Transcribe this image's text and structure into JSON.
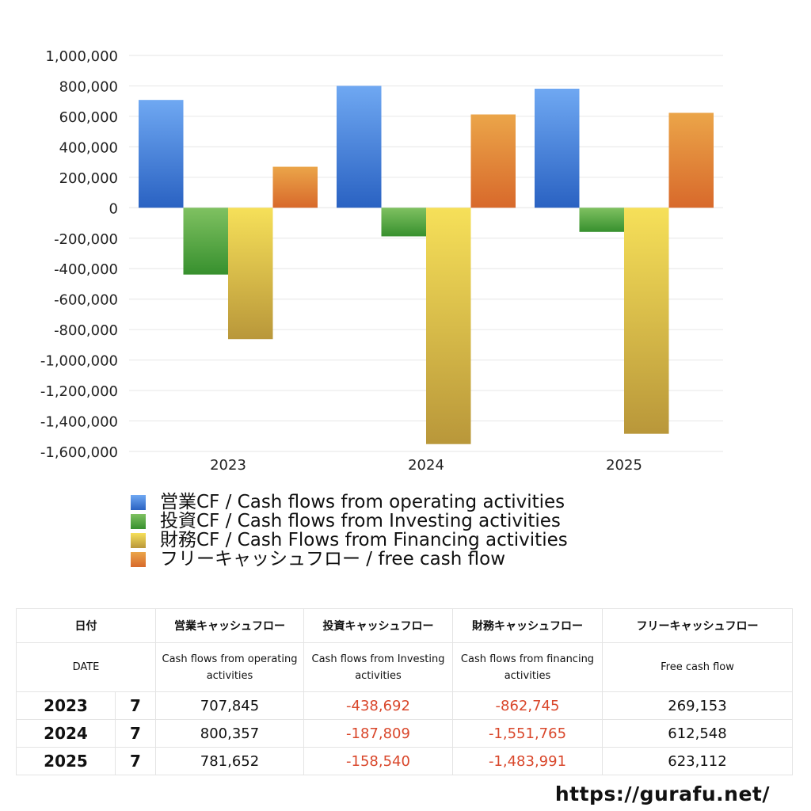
{
  "chart_data": {
    "type": "bar",
    "categories": [
      "2023",
      "2024",
      "2025"
    ],
    "series": [
      {
        "name": "営業CF / Cash flows from operating activities",
        "values": [
          707845,
          800357,
          781652
        ],
        "color_top": "#6fa8f2",
        "color_bottom": "#2a62c2"
      },
      {
        "name": "投資CF / Cash flows from Investing activities",
        "values": [
          -438692,
          -187809,
          -158540
        ],
        "color_top": "#7fc161",
        "color_bottom": "#37902e"
      },
      {
        "name": "財務CF / Cash Flows from Financing activities",
        "values": [
          -862745,
          -1551765,
          -1483991
        ],
        "color_top": "#f6e059",
        "color_bottom": "#b9973a"
      },
      {
        "name": "フリーキャッシュフロー / free cash flow",
        "values": [
          269153,
          612548,
          623112
        ],
        "color_top": "#eba549",
        "color_bottom": "#d8692b"
      }
    ],
    "ylim": [
      -1600000,
      1000000
    ],
    "yticks": [
      1000000,
      800000,
      600000,
      400000,
      200000,
      0,
      -200000,
      -400000,
      -600000,
      -800000,
      -1000000,
      -1200000,
      -1400000,
      -1600000
    ],
    "ytick_labels": [
      "1,000,000",
      "800,000",
      "600,000",
      "400,000",
      "200,000",
      "0",
      "-200,000",
      "-400,000",
      "-600,000",
      "-800,000",
      "-1,000,000",
      "-1,200,000",
      "-1,400,000",
      "-1,600,000"
    ],
    "grid": true,
    "legend_position": "bottom"
  },
  "table": {
    "header_ja": {
      "date": "日付",
      "operating": "営業キャッシュフロー",
      "investing": "投資キャッシュフロー",
      "financing": "財務キャッシュフロー",
      "free": "フリーキャッシュフロー"
    },
    "header_en": {
      "date": "DATE",
      "operating": "Cash flows from operating activities",
      "investing": "Cash flows from Investing activities",
      "financing": "Cash flows from financing activities",
      "free": "Free cash flow"
    },
    "rows": [
      {
        "year": "2023",
        "month": "7",
        "operating": "707,845",
        "investing": "-438,692",
        "financing": "-862,745",
        "free": "269,153"
      },
      {
        "year": "2024",
        "month": "7",
        "operating": "800,357",
        "investing": "-187,809",
        "financing": "-1,551,765",
        "free": "612,548"
      },
      {
        "year": "2025",
        "month": "7",
        "operating": "781,652",
        "investing": "-158,540",
        "financing": "-1,483,991",
        "free": "623,112"
      }
    ],
    "negative_color": "#d9472b"
  },
  "credit": "https://gurafu.net/"
}
